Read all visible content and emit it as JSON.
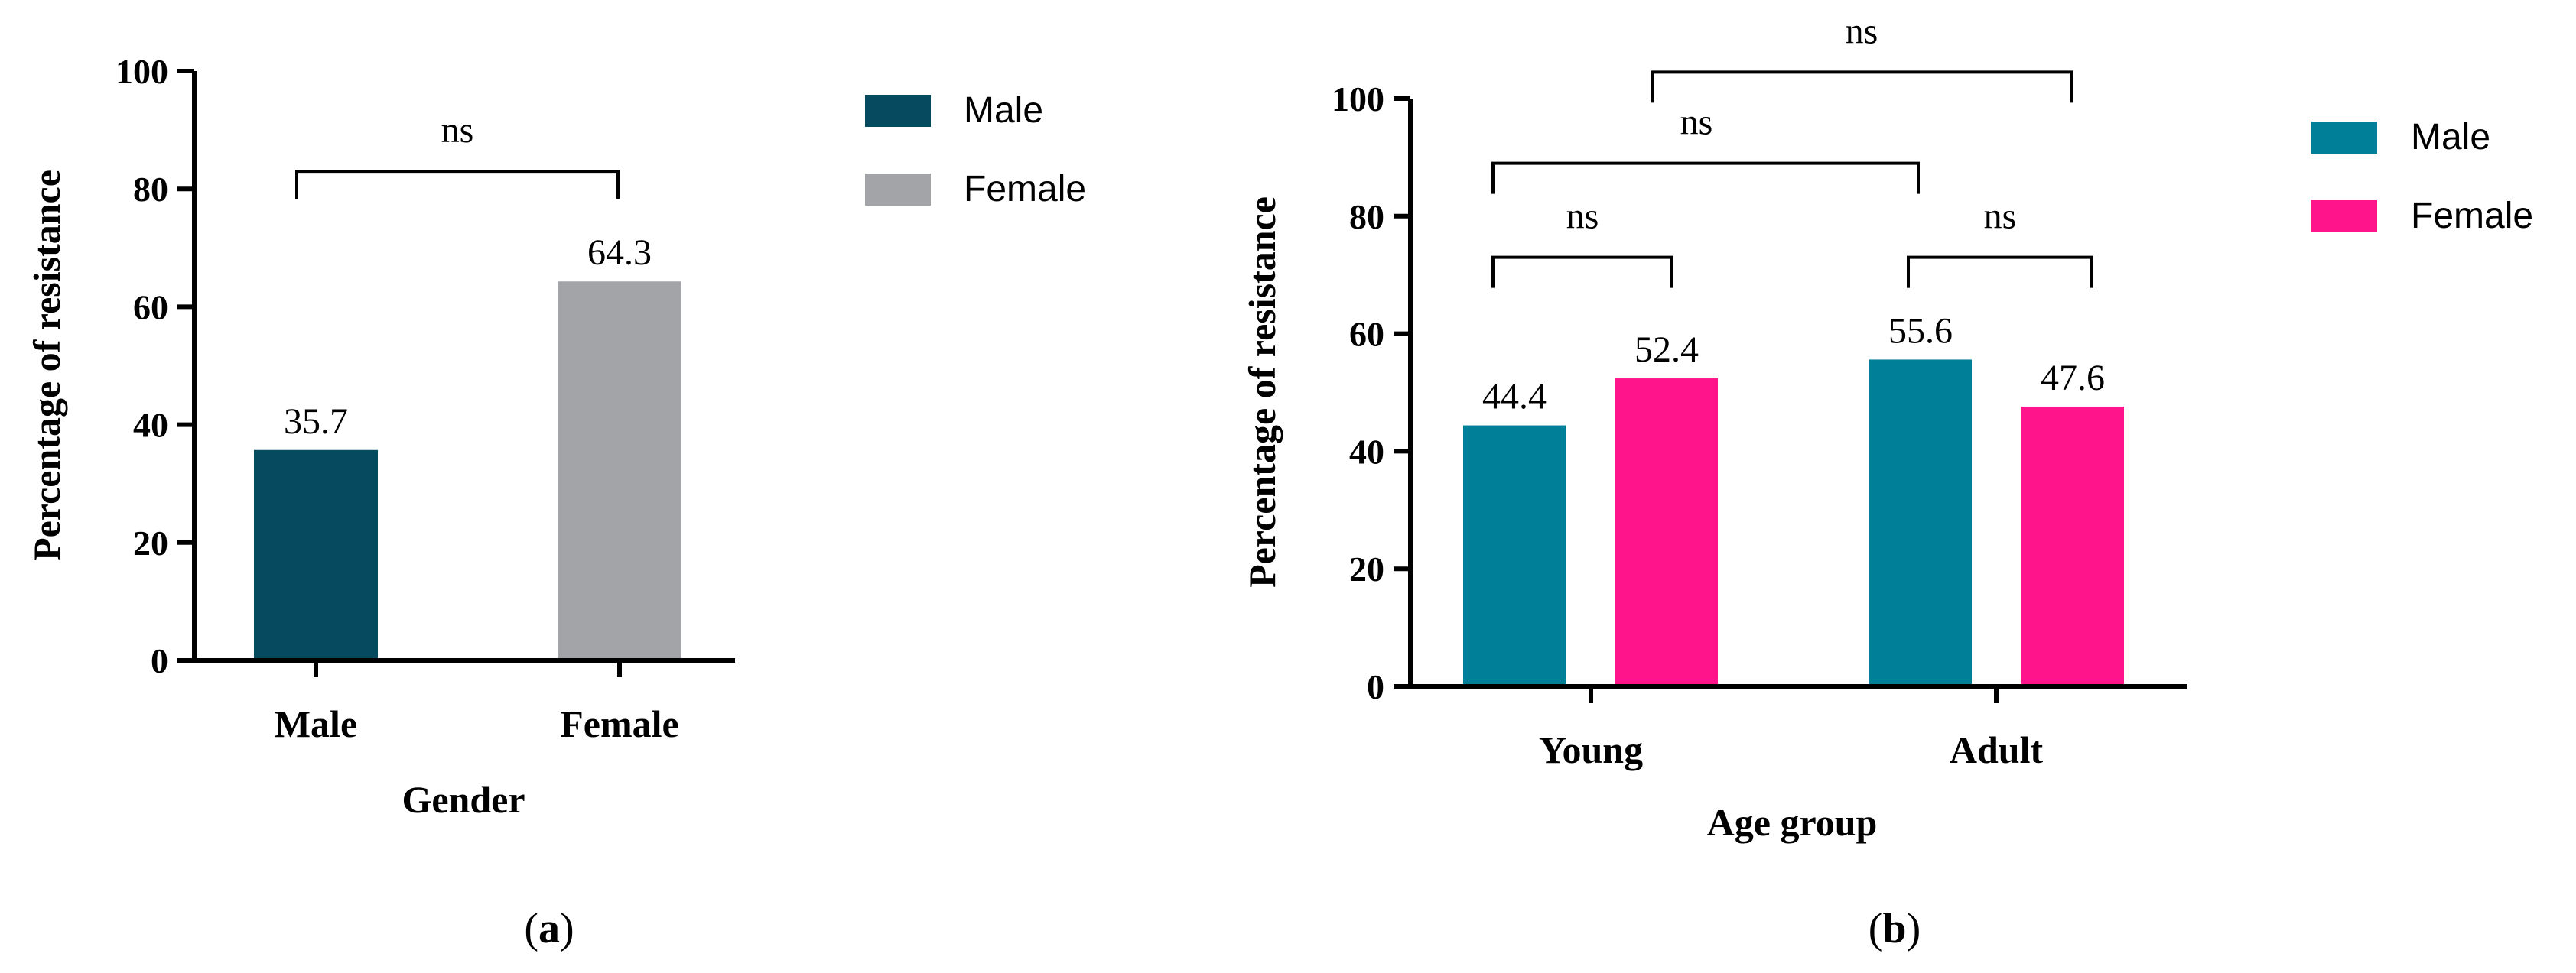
{
  "chart_data": [
    {
      "id": "a",
      "panel_label": "a",
      "type": "bar",
      "categories": [
        "Male",
        "Female"
      ],
      "values": [
        35.7,
        64.3
      ],
      "value_labels": [
        "35.7",
        "64.3"
      ],
      "colors": [
        "#054a5e",
        "#a3a4a8"
      ],
      "xlabel": "Gender",
      "ylabel": "Percentage of resistance",
      "ylim": [
        0,
        100
      ],
      "yticks": [
        "0",
        "20",
        "40",
        "60",
        "80",
        "100"
      ],
      "legend": [
        {
          "name": "Male",
          "color": "#054a5e"
        },
        {
          "name": "Female",
          "color": "#a3a4a8"
        }
      ],
      "legend_position": "right",
      "annotations": [
        {
          "text": "ns",
          "from_bar": "Male",
          "to_bar": "Female",
          "at_value": 83
        }
      ]
    },
    {
      "id": "b",
      "panel_label": "b",
      "type": "bar",
      "categories": [
        "Young",
        "Adult"
      ],
      "series": [
        {
          "name": "Male",
          "color": "#007f99",
          "values": [
            44.4,
            55.6
          ],
          "value_labels": [
            "44.4",
            "55.6"
          ]
        },
        {
          "name": "Female",
          "color": "#ff148c",
          "values": [
            52.4,
            47.6
          ],
          "value_labels": [
            "52.4",
            "47.6"
          ]
        }
      ],
      "xlabel": "Age group",
      "ylabel": "Percentage of resistance",
      "ylim": [
        0,
        100
      ],
      "yticks": [
        "0",
        "20",
        "40",
        "60",
        "80",
        "100"
      ],
      "legend": [
        {
          "name": "Male",
          "color": "#007f99"
        },
        {
          "name": "Female",
          "color": "#ff148c"
        }
      ],
      "legend_position": "right",
      "annotations": [
        {
          "text": "ns",
          "from": "Young-Male",
          "to": "Young-Female",
          "at_value": 73
        },
        {
          "text": "ns",
          "from": "Adult-Male",
          "to": "Adult-Female",
          "at_value": 73
        },
        {
          "text": "ns",
          "from": "Young-Male",
          "to": "Adult-Male",
          "at_value": 89
        },
        {
          "text": "ns",
          "from": "Young",
          "to": "Adult",
          "at_value": 104.5
        }
      ]
    }
  ]
}
